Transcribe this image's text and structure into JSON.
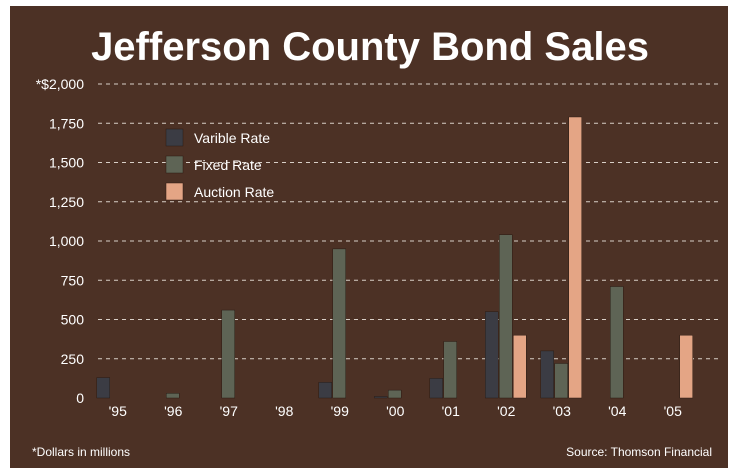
{
  "chart_data": {
    "type": "bar",
    "title": "Jefferson County Bond Sales",
    "ylabel_prefix": "*",
    "categories": [
      "'95",
      "'96",
      "'97",
      "'98",
      "'99",
      "'00",
      "'01",
      "'02",
      "'03",
      "'04",
      "'05"
    ],
    "series": [
      {
        "name": "Varible Rate",
        "color": "#3b3c44",
        "values": [
          130,
          0,
          0,
          0,
          100,
          10,
          125,
          550,
          300,
          0,
          0
        ]
      },
      {
        "name": "Fixed Rate",
        "color": "#5e6455",
        "values": [
          0,
          30,
          560,
          0,
          950,
          50,
          360,
          1040,
          220,
          710,
          0
        ]
      },
      {
        "name": "Auction Rate",
        "color": "#e4a585",
        "values": [
          0,
          0,
          0,
          0,
          0,
          0,
          0,
          400,
          1790,
          0,
          400
        ]
      }
    ],
    "ylim": [
      0,
      2000
    ],
    "yticks": [
      0,
      250,
      500,
      750,
      1000,
      1250,
      1500,
      1750,
      2000
    ],
    "ytick_labels": [
      "0",
      "250",
      "500",
      "750",
      "1,000",
      "1,250",
      "1,500",
      "1,750",
      "*$2,000"
    ],
    "grid": "dashed horizontal",
    "legend_position": "top-left"
  },
  "footnote": "*Dollars in millions",
  "source": "Source: Thomson Financial",
  "colors": {
    "background": "#4c3125",
    "text": "#ffffff",
    "grid": "#d8cfc7"
  }
}
